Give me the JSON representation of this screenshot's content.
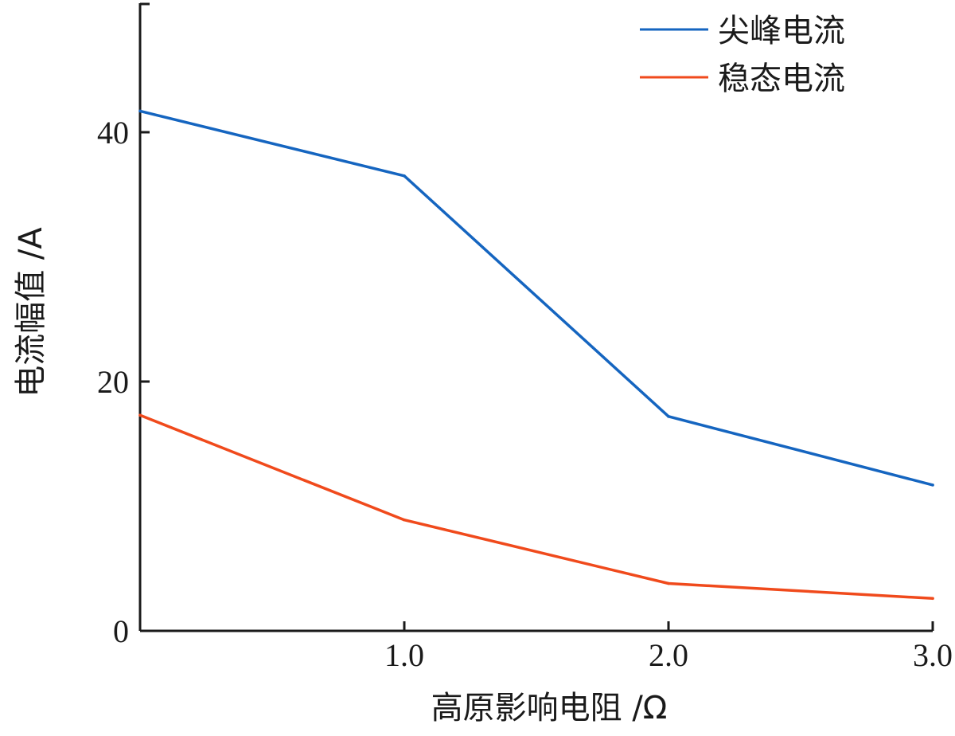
{
  "chart_data": {
    "type": "line",
    "title": "",
    "xlabel": "高原影响电阻 /Ω",
    "ylabel": "电流幅值 /A",
    "x": [
      0,
      1.0,
      2.0,
      3.0
    ],
    "x_tick_labels": [
      "1.0",
      "2.0",
      "3.0"
    ],
    "y_tick_labels": [
      "0",
      "20",
      "40"
    ],
    "xlim": [
      0,
      3.0
    ],
    "ylim": [
      0,
      50
    ],
    "grid": false,
    "legend_position": "top-right",
    "series": [
      {
        "name": "尖峰电流",
        "color": "#1565c0",
        "values": [
          41.7,
          36.5,
          17.2,
          11.7
        ]
      },
      {
        "name": "稳态电流",
        "color": "#f04a1c",
        "values": [
          17.3,
          8.9,
          3.8,
          2.6
        ]
      }
    ]
  }
}
